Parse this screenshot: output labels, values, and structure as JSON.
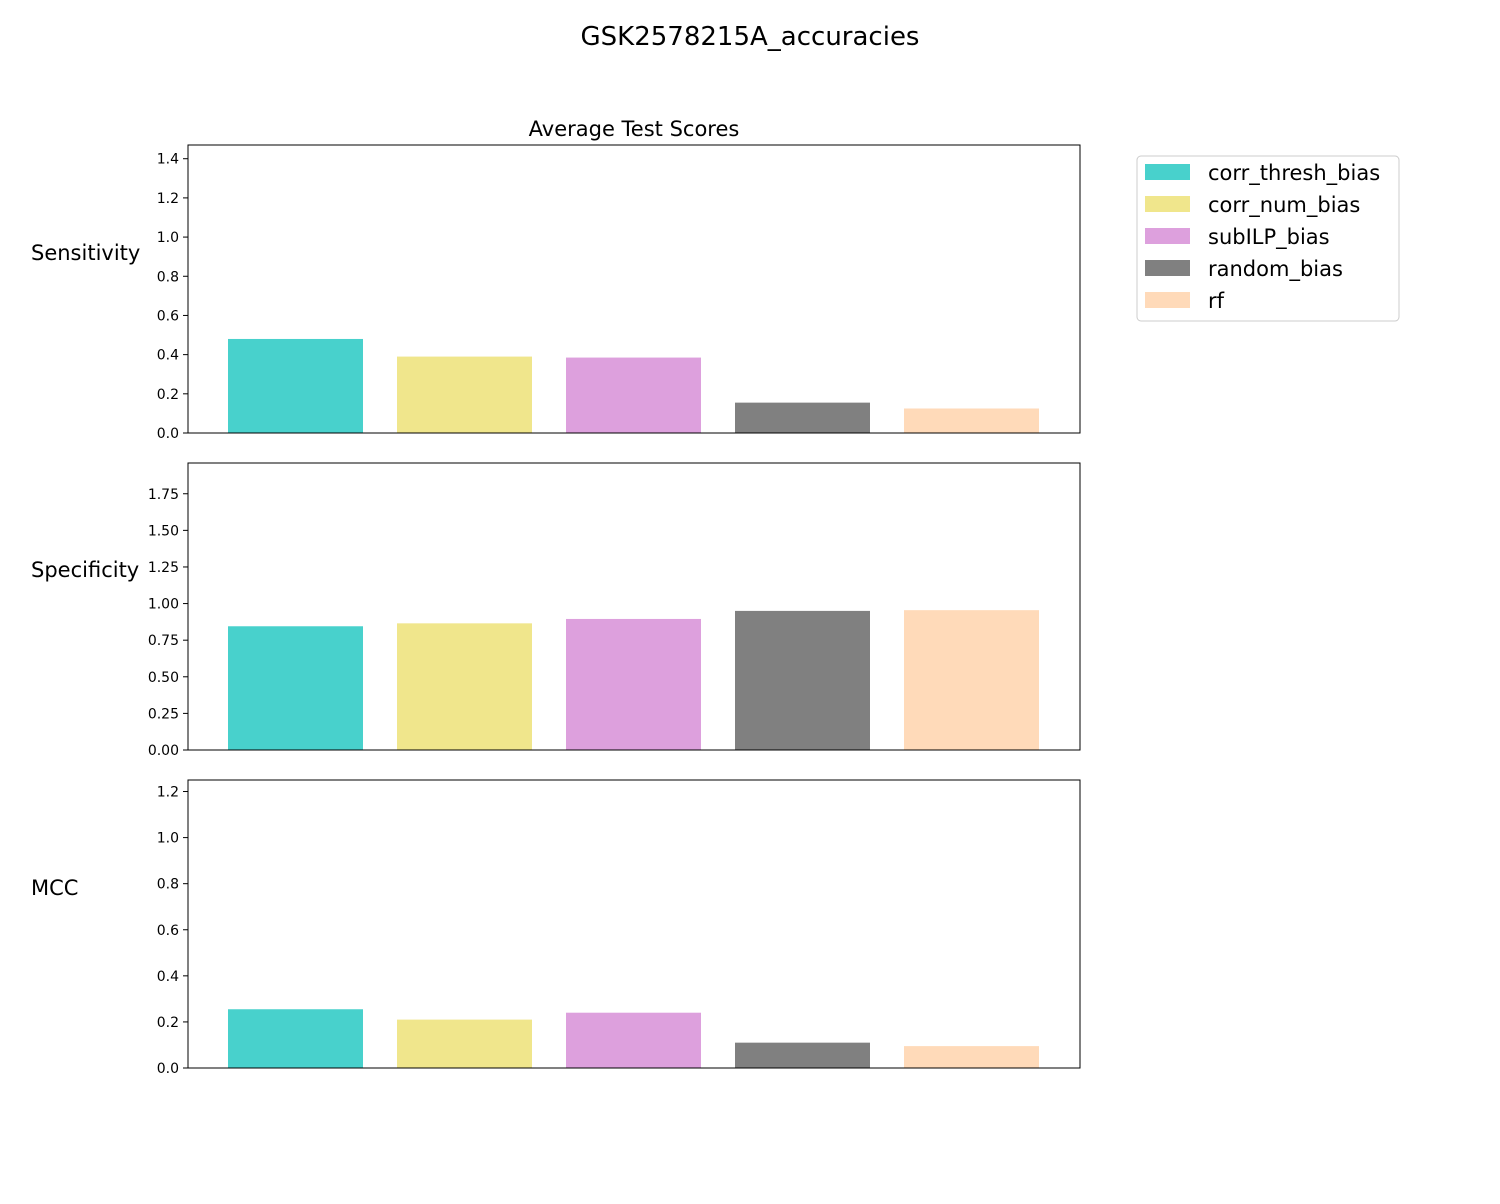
{
  "figure": {
    "title": "GSK2578215A_accuracies",
    "subtitle": "Average Test Scores"
  },
  "chart_data": [
    {
      "type": "bar",
      "ylabel": "Sensitivity",
      "categories": [
        "corr_thresh_bias",
        "corr_num_bias",
        "subILP_bias",
        "random_bias",
        "rf"
      ],
      "values": [
        0.48,
        0.39,
        0.385,
        0.155,
        0.125
      ],
      "ylim": [
        0,
        1.47
      ],
      "yticks": [
        0.0,
        0.2,
        0.4,
        0.6,
        0.8,
        1.0,
        1.2,
        1.4
      ],
      "tick_decimals": 1,
      "grid": false
    },
    {
      "type": "bar",
      "ylabel": "Specificity",
      "categories": [
        "corr_thresh_bias",
        "corr_num_bias",
        "subILP_bias",
        "random_bias",
        "rf"
      ],
      "values": [
        0.845,
        0.865,
        0.895,
        0.95,
        0.955
      ],
      "ylim": [
        0,
        1.96
      ],
      "yticks": [
        0.0,
        0.25,
        0.5,
        0.75,
        1.0,
        1.25,
        1.5,
        1.75
      ],
      "tick_decimals": 2,
      "grid": false
    },
    {
      "type": "bar",
      "ylabel": "MCC",
      "categories": [
        "corr_thresh_bias",
        "corr_num_bias",
        "subILP_bias",
        "random_bias",
        "rf"
      ],
      "values": [
        0.255,
        0.21,
        0.24,
        0.11,
        0.095
      ],
      "ylim": [
        0,
        1.25
      ],
      "yticks": [
        0.0,
        0.2,
        0.4,
        0.6,
        0.8,
        1.0,
        1.2
      ],
      "tick_decimals": 1,
      "grid": false
    }
  ],
  "legend": {
    "placement": "upper-right-outside",
    "entries": [
      {
        "label": "corr_thresh_bias",
        "color": "#48d1cc"
      },
      {
        "label": "corr_num_bias",
        "color": "#f0e68c"
      },
      {
        "label": "subILP_bias",
        "color": "#dda0dd"
      },
      {
        "label": "random_bias",
        "color": "#808080"
      },
      {
        "label": "rf",
        "color": "#ffdab9"
      }
    ]
  }
}
